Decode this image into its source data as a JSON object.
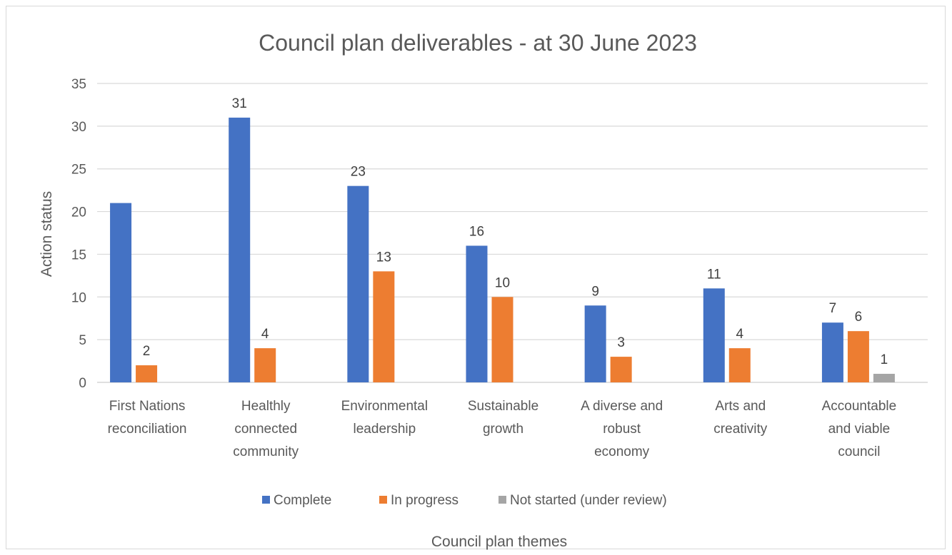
{
  "chart_data": {
    "type": "bar",
    "title": "Council plan deliverables - at 30 June 2023",
    "xlabel": "Council plan themes",
    "ylabel": "Action status",
    "ylim": [
      0,
      35
    ],
    "yticks": [
      0,
      5,
      10,
      15,
      20,
      25,
      30,
      35
    ],
    "grid": true,
    "legend_position": "bottom",
    "categories": [
      [
        "First Nations",
        "reconciliation"
      ],
      [
        "Healthly",
        "connected",
        "community"
      ],
      [
        "Environmental",
        "leadership"
      ],
      [
        "Sustainable",
        "growth"
      ],
      [
        "A diverse and",
        "robust",
        "economy"
      ],
      [
        "Arts and",
        "creativity"
      ],
      [
        "Accountable",
        "and viable",
        "council"
      ]
    ],
    "series": [
      {
        "name": "Complete",
        "color": "#4472c4",
        "values": [
          21,
          31,
          23,
          16,
          9,
          11,
          7
        ],
        "labels": [
          "",
          "31",
          "23",
          "16",
          "9",
          "11",
          "7"
        ]
      },
      {
        "name": "In progress",
        "color": "#ed7d31",
        "values": [
          2,
          4,
          13,
          10,
          3,
          4,
          6
        ],
        "labels": [
          "2",
          "4",
          "13",
          "10",
          "3",
          "4",
          "6"
        ]
      },
      {
        "name": "Not started (under review)",
        "color": "#a5a5a5",
        "values": [
          0,
          0,
          0,
          0,
          0,
          0,
          1
        ],
        "labels": [
          "",
          "",
          "",
          "",
          "",
          "",
          "1"
        ]
      }
    ]
  }
}
